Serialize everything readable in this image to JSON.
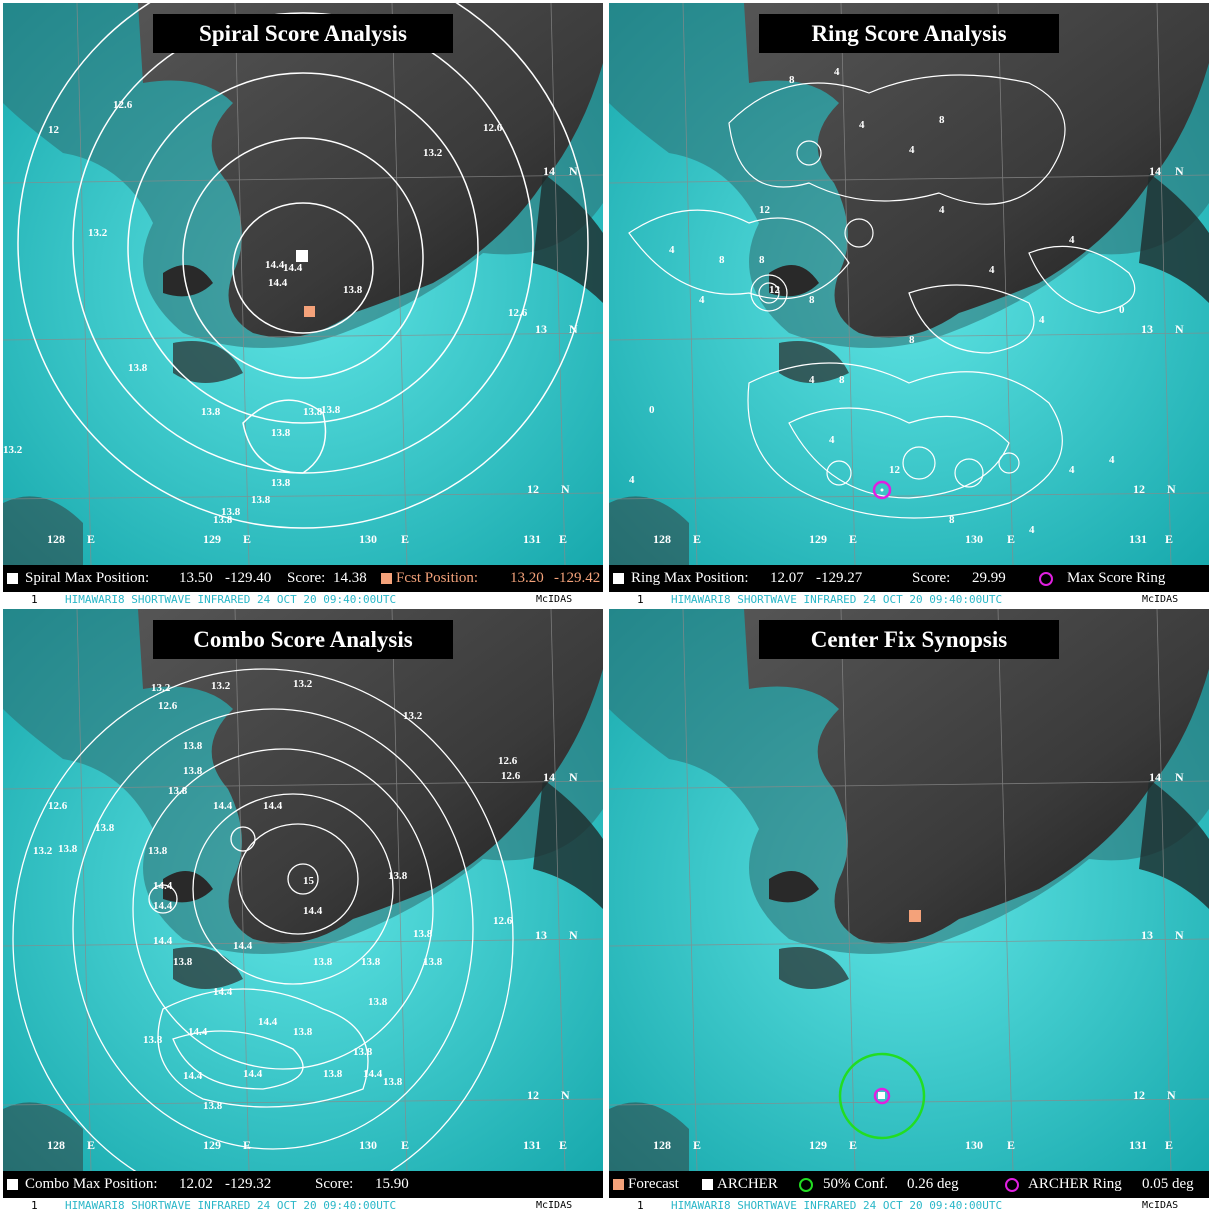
{
  "panels": {
    "spiral": {
      "title": "Spiral Score Analysis",
      "max_label": "Spiral Max Position:",
      "max_lat": "13.50",
      "max_lon": "-129.40",
      "score_label": "Score:",
      "score": "14.38",
      "fcst_label": "Fcst Position:",
      "fcst_lat": "13.20",
      "fcst_lon": "-129.42",
      "contour_labels": [
        "12.6",
        "12",
        "12.6",
        "13.2",
        "13.2",
        "14.4",
        "14.4",
        "14.4",
        "13.8",
        "12.6",
        "13.8",
        "13.8",
        "13.8",
        "13.8",
        "13.8",
        "13.8",
        "13.8",
        "13.8",
        "13.8",
        "13.2"
      ]
    },
    "ring": {
      "title": "Ring Score Analysis",
      "max_label": "Ring Max Position:",
      "max_lat": "12.07",
      "max_lon": "-129.27",
      "score_label": "Score:",
      "score": "29.99",
      "ring_label": "Max Score Ring",
      "contour_labels": [
        "8",
        "4",
        "8",
        "4",
        "4",
        "12",
        "8",
        "4",
        "4",
        "8",
        "12",
        "4",
        "8",
        "4",
        "4",
        "0",
        "4",
        "8",
        "4",
        "4",
        "0",
        "4",
        "12",
        "8",
        "4",
        "8",
        "4",
        "4"
      ]
    },
    "combo": {
      "title": "Combo Score Analysis",
      "max_label": "Combo Max Position:",
      "max_lat": "12.02",
      "max_lon": "-129.32",
      "score_label": "Score:",
      "score": "15.90",
      "contour_labels": [
        "13.2",
        "13.2",
        "13.2",
        "12.6",
        "13.2",
        "12.6",
        "12.6",
        "13.8",
        "13.8",
        "13.8",
        "14.4",
        "14.4",
        "12.6",
        "13.2",
        "13.8",
        "13.8",
        "13.8",
        "15",
        "14.4",
        "14.4",
        "14.4",
        "13.8",
        "13.8",
        "14.4",
        "14.4",
        "13.8",
        "13.8",
        "13.8",
        "13.8",
        "13.8",
        "12.6",
        "13.8",
        "14.4",
        "14.4",
        "14.4",
        "13.8",
        "13.8",
        "14.4",
        "14.4",
        "14.4",
        "13.8",
        "13.8",
        "13.8"
      ]
    },
    "center": {
      "title": "Center Fix Synopsis",
      "forecast_label": "Forecast",
      "archer_label": "ARCHER",
      "conf_label": "50% Conf.",
      "conf_value": "0.26 deg",
      "ring_label": "ARCHER Ring",
      "ring_value": "0.05 deg"
    }
  },
  "geo_labels": {
    "lat_14": "14",
    "lat_13": "13",
    "lat_12": "12",
    "north": "N",
    "lon_128": "128",
    "lon_129": "129",
    "lon_130": "130",
    "lon_131": "131",
    "east": "E"
  },
  "footer": {
    "num": "1",
    "text": "HIMAWARI8  SHORTWAVE INFRARED   24 OCT 20   09:40:00UTC",
    "brand": "McIDAS"
  },
  "colors": {
    "cloud_cyan": "#1fbfbf",
    "cloud_dark": "#3a3a3a",
    "forecast": "#f4a27a",
    "archer": "#ffffff",
    "ring_magenta": "#e020e0",
    "conf_green": "#22dd22",
    "footer_text": "#2bb7c8"
  }
}
